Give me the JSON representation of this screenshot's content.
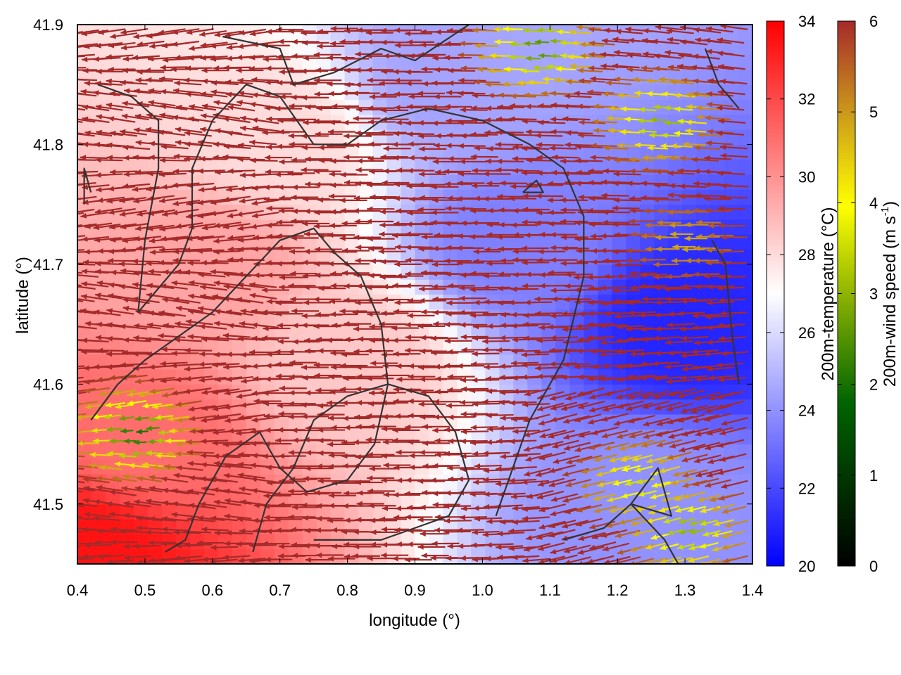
{
  "chart_data": {
    "type": "heatmap",
    "xlabel": "longitude (°)",
    "ylabel": "latitude (°)",
    "xlim": [
      0.4,
      1.4
    ],
    "ylim": [
      41.45,
      41.9
    ],
    "xticks": [
      "0.4",
      "0.5",
      "0.6",
      "0.7",
      "0.8",
      "0.9",
      "1.0",
      "1.1",
      "1.2",
      "1.3",
      "1.4"
    ],
    "yticks": [
      "41.5",
      "41.6",
      "41.7",
      "41.8",
      "41.9"
    ],
    "xtick_values": [
      0.4,
      0.5,
      0.6,
      0.7,
      0.8,
      0.9,
      1.0,
      1.1,
      1.2,
      1.3,
      1.4
    ],
    "ytick_values": [
      41.5,
      41.6,
      41.7,
      41.8,
      41.9
    ],
    "temperature_colorbar": {
      "label": "200m-temperature (°C)",
      "range": [
        20,
        34
      ],
      "ticks": [
        "20",
        "22",
        "24",
        "26",
        "28",
        "30",
        "32",
        "34"
      ],
      "tick_values": [
        20,
        22,
        24,
        26,
        28,
        30,
        32,
        34
      ],
      "colors": [
        "#0000ff",
        "#ffffff",
        "#ff0000"
      ]
    },
    "wind_colorbar": {
      "label": "200m-wind speed (m s",
      "label_sup": "-1",
      "label_end": ")",
      "range": [
        0,
        6
      ],
      "ticks": [
        "0",
        "1",
        "2",
        "3",
        "4",
        "5",
        "6"
      ],
      "tick_values": [
        0,
        1,
        2,
        3,
        4,
        5,
        6
      ],
      "colors": [
        "#000000",
        "#006400",
        "#8fb400",
        "#ffff00",
        "#cc9a1a",
        "#a52a2a"
      ]
    },
    "temperature_field": {
      "description_points": [
        {
          "lon": 0.42,
          "lat": 41.46,
          "temp": 33.5
        },
        {
          "lon": 0.5,
          "lat": 41.55,
          "temp": 31.0
        },
        {
          "lon": 0.6,
          "lat": 41.7,
          "temp": 29.5
        },
        {
          "lon": 0.7,
          "lat": 41.8,
          "temp": 28.0
        },
        {
          "lon": 0.8,
          "lat": 41.62,
          "temp": 28.5
        },
        {
          "lon": 0.95,
          "lat": 41.85,
          "temp": 24.5
        },
        {
          "lon": 1.05,
          "lat": 41.72,
          "temp": 23.5
        },
        {
          "lon": 1.3,
          "lat": 41.65,
          "temp": 21.0
        },
        {
          "lon": 1.25,
          "lat": 41.5,
          "temp": 24.0
        }
      ]
    },
    "contours": [
      [
        [
          0.615,
          41.89
        ],
        [
          0.7,
          41.88
        ],
        [
          0.72,
          41.85
        ],
        [
          0.78,
          41.86
        ],
        [
          0.85,
          41.88
        ],
        [
          0.9,
          41.87
        ],
        [
          0.98,
          41.9
        ]
      ],
      [
        [
          0.41,
          41.75
        ],
        [
          0.41,
          41.78
        ],
        [
          0.42,
          41.76
        ]
      ],
      [
        [
          0.43,
          41.85
        ],
        [
          0.48,
          41.84
        ],
        [
          0.52,
          41.82
        ],
        [
          0.52,
          41.78
        ],
        [
          0.5,
          41.72
        ],
        [
          0.49,
          41.66
        ],
        [
          0.52,
          41.68
        ],
        [
          0.55,
          41.7
        ],
        [
          0.57,
          41.73
        ],
        [
          0.57,
          41.78
        ],
        [
          0.6,
          41.82
        ],
        [
          0.65,
          41.85
        ],
        [
          0.7,
          41.84
        ],
        [
          0.75,
          41.8
        ],
        [
          0.8,
          41.8
        ],
        [
          0.85,
          41.82
        ],
        [
          0.92,
          41.83
        ],
        [
          1.0,
          41.82
        ],
        [
          1.07,
          41.8
        ],
        [
          1.12,
          41.78
        ],
        [
          1.15,
          41.74
        ],
        [
          1.15,
          41.69
        ],
        [
          1.12,
          41.62
        ],
        [
          1.07,
          41.57
        ],
        [
          1.02,
          41.49
        ]
      ],
      [
        [
          0.42,
          41.57
        ],
        [
          0.46,
          41.6
        ],
        [
          0.5,
          41.62
        ],
        [
          0.55,
          41.64
        ],
        [
          0.6,
          41.66
        ],
        [
          0.65,
          41.69
        ],
        [
          0.7,
          41.72
        ],
        [
          0.75,
          41.73
        ],
        [
          0.78,
          41.71
        ],
        [
          0.82,
          41.69
        ],
        [
          0.85,
          41.65
        ],
        [
          0.86,
          41.6
        ],
        [
          0.84,
          41.55
        ],
        [
          0.8,
          41.52
        ],
        [
          0.74,
          41.51
        ],
        [
          0.7,
          41.53
        ],
        [
          0.67,
          41.56
        ],
        [
          0.62,
          41.54
        ],
        [
          0.58,
          41.5
        ],
        [
          0.56,
          41.47
        ],
        [
          0.53,
          41.46
        ]
      ],
      [
        [
          0.66,
          41.46
        ],
        [
          0.68,
          41.5
        ],
        [
          0.72,
          41.53
        ],
        [
          0.75,
          41.57
        ],
        [
          0.8,
          41.59
        ],
        [
          0.86,
          41.6
        ],
        [
          0.92,
          41.59
        ],
        [
          0.96,
          41.56
        ],
        [
          0.98,
          41.52
        ],
        [
          0.95,
          41.49
        ],
        [
          0.9,
          41.48
        ],
        [
          0.85,
          41.47
        ],
        [
          0.8,
          41.47
        ],
        [
          0.75,
          41.47
        ]
      ],
      [
        [
          1.06,
          41.76
        ],
        [
          1.09,
          41.76
        ],
        [
          1.08,
          41.77
        ],
        [
          1.06,
          41.76
        ]
      ],
      [
        [
          1.22,
          41.5
        ],
        [
          1.26,
          41.53
        ],
        [
          1.28,
          41.49
        ],
        [
          1.22,
          41.5
        ]
      ],
      [
        [
          1.12,
          41.47
        ],
        [
          1.18,
          41.48
        ],
        [
          1.22,
          41.5
        ],
        [
          1.27,
          41.47
        ],
        [
          1.29,
          41.45
        ]
      ],
      [
        [
          1.33,
          41.88
        ],
        [
          1.35,
          41.85
        ],
        [
          1.38,
          41.83
        ]
      ],
      [
        [
          1.34,
          41.72
        ],
        [
          1.36,
          41.7
        ],
        [
          1.37,
          41.64
        ],
        [
          1.38,
          41.6
        ]
      ]
    ],
    "wind_vectors_note_free": true,
    "wind_hotspots": [
      {
        "lon": 0.5,
        "lat": 41.56,
        "speed": 2.0
      },
      {
        "lon": 1.25,
        "lat": 41.52,
        "speed": 3.5
      },
      {
        "lon": 1.28,
        "lat": 41.82,
        "speed": 3.0
      },
      {
        "lon": 1.1,
        "lat": 41.88,
        "speed": 2.5
      },
      {
        "lon": 1.32,
        "lat": 41.72,
        "speed": 4.8
      },
      {
        "lon": 1.32,
        "lat": 41.48,
        "speed": 3.0
      }
    ]
  }
}
